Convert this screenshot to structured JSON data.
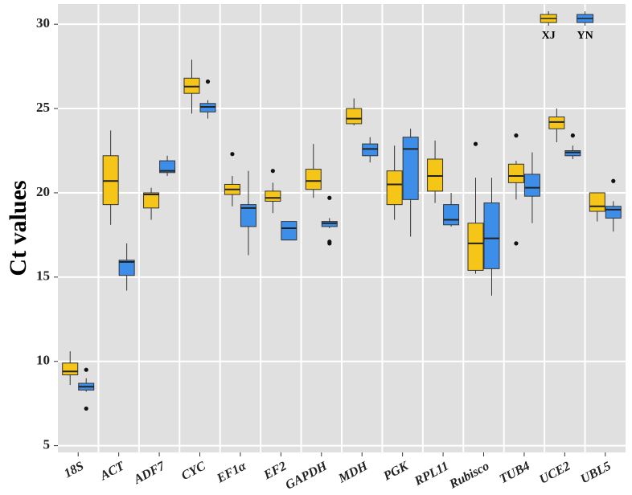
{
  "chart_data": {
    "type": "box",
    "y_label": "Ct values",
    "categories": [
      "18S",
      "ACT",
      "ADF7",
      "CYC",
      "EF1α",
      "EF2",
      "GAPDH",
      "MDH",
      "PGK",
      "RPL11",
      "Rubisco",
      "TUB4",
      "UCE2",
      "UBL5"
    ],
    "ylim": [
      4.6,
      31.2
    ],
    "yticks": [
      5,
      10,
      15,
      20,
      25,
      30
    ],
    "grid": true,
    "legend": "top-right",
    "series": [
      {
        "name": "XJ",
        "color": "#f5c518",
        "boxes": [
          {
            "min": 8.6,
            "q1": 9.2,
            "median": 9.4,
            "q3": 9.9,
            "max": 10.6,
            "outliers": []
          },
          {
            "min": 18.1,
            "q1": 19.3,
            "median": 20.7,
            "q3": 22.2,
            "max": 23.7,
            "outliers": []
          },
          {
            "min": 18.4,
            "q1": 19.1,
            "median": 19.9,
            "q3": 20.0,
            "max": 20.3,
            "outliers": []
          },
          {
            "min": 24.7,
            "q1": 25.9,
            "median": 26.3,
            "q3": 26.8,
            "max": 27.9,
            "outliers": []
          },
          {
            "min": 19.2,
            "q1": 19.9,
            "median": 20.2,
            "q3": 20.5,
            "max": 21.0,
            "outliers": [
              22.3
            ]
          },
          {
            "min": 18.8,
            "q1": 19.5,
            "median": 19.7,
            "q3": 20.1,
            "max": 20.6,
            "outliers": [
              21.3
            ]
          },
          {
            "min": 19.7,
            "q1": 20.2,
            "median": 20.7,
            "q3": 21.4,
            "max": 22.9,
            "outliers": []
          },
          {
            "min": 24.0,
            "q1": 24.1,
            "median": 24.4,
            "q3": 25.0,
            "max": 25.6,
            "outliers": []
          },
          {
            "min": 18.4,
            "q1": 19.3,
            "median": 20.5,
            "q3": 21.3,
            "max": 22.8,
            "outliers": []
          },
          {
            "min": 19.4,
            "q1": 20.1,
            "median": 21.0,
            "q3": 22.0,
            "max": 23.1,
            "outliers": []
          },
          {
            "min": 15.2,
            "q1": 15.4,
            "median": 17.0,
            "q3": 18.2,
            "max": 20.9,
            "outliers": [
              22.9
            ]
          },
          {
            "min": 19.6,
            "q1": 20.6,
            "median": 21.0,
            "q3": 21.7,
            "max": 21.9,
            "outliers": [
              23.4,
              17.0
            ]
          },
          {
            "min": 23.0,
            "q1": 23.8,
            "median": 24.2,
            "q3": 24.5,
            "max": 25.0,
            "outliers": []
          },
          {
            "min": 18.3,
            "q1": 18.9,
            "median": 19.2,
            "q3": 20.0,
            "max": 20.0,
            "outliers": []
          }
        ]
      },
      {
        "name": "YN",
        "color": "#3d8ee8",
        "boxes": [
          {
            "min": 8.2,
            "q1": 8.3,
            "median": 8.5,
            "q3": 8.7,
            "max": 9.0,
            "outliers": [
              9.5,
              7.2
            ]
          },
          {
            "min": 14.2,
            "q1": 15.1,
            "median": 15.9,
            "q3": 16.0,
            "max": 17.0,
            "outliers": []
          },
          {
            "min": 21.0,
            "q1": 21.2,
            "median": 21.3,
            "q3": 21.9,
            "max": 22.2,
            "outliers": []
          },
          {
            "min": 24.4,
            "q1": 24.8,
            "median": 25.1,
            "q3": 25.3,
            "max": 25.5,
            "outliers": [
              26.6
            ]
          },
          {
            "min": 16.3,
            "q1": 18.0,
            "median": 19.1,
            "q3": 19.3,
            "max": 21.3,
            "outliers": []
          },
          {
            "min": 17.2,
            "q1": 17.2,
            "median": 17.9,
            "q3": 18.3,
            "max": 18.3,
            "outliers": []
          },
          {
            "min": 17.9,
            "q1": 18.0,
            "median": 18.2,
            "q3": 18.3,
            "max": 18.5,
            "outliers": [
              19.7,
              17.1,
              17.0
            ]
          },
          {
            "min": 21.8,
            "q1": 22.2,
            "median": 22.6,
            "q3": 22.9,
            "max": 23.3,
            "outliers": []
          },
          {
            "min": 17.4,
            "q1": 19.6,
            "median": 22.6,
            "q3": 23.3,
            "max": 23.8,
            "outliers": []
          },
          {
            "min": 18.0,
            "q1": 18.1,
            "median": 18.4,
            "q3": 19.3,
            "max": 20.0,
            "outliers": []
          },
          {
            "min": 13.9,
            "q1": 15.5,
            "median": 17.3,
            "q3": 19.4,
            "max": 20.9,
            "outliers": []
          },
          {
            "min": 18.2,
            "q1": 19.8,
            "median": 20.3,
            "q3": 21.1,
            "max": 22.4,
            "outliers": []
          },
          {
            "min": 22.0,
            "q1": 22.2,
            "median": 22.4,
            "q3": 22.5,
            "max": 22.8,
            "outliers": [
              23.4
            ]
          },
          {
            "min": 17.7,
            "q1": 18.5,
            "median": 19.0,
            "q3": 19.2,
            "max": 19.5,
            "outliers": [
              20.7
            ]
          }
        ]
      }
    ]
  }
}
